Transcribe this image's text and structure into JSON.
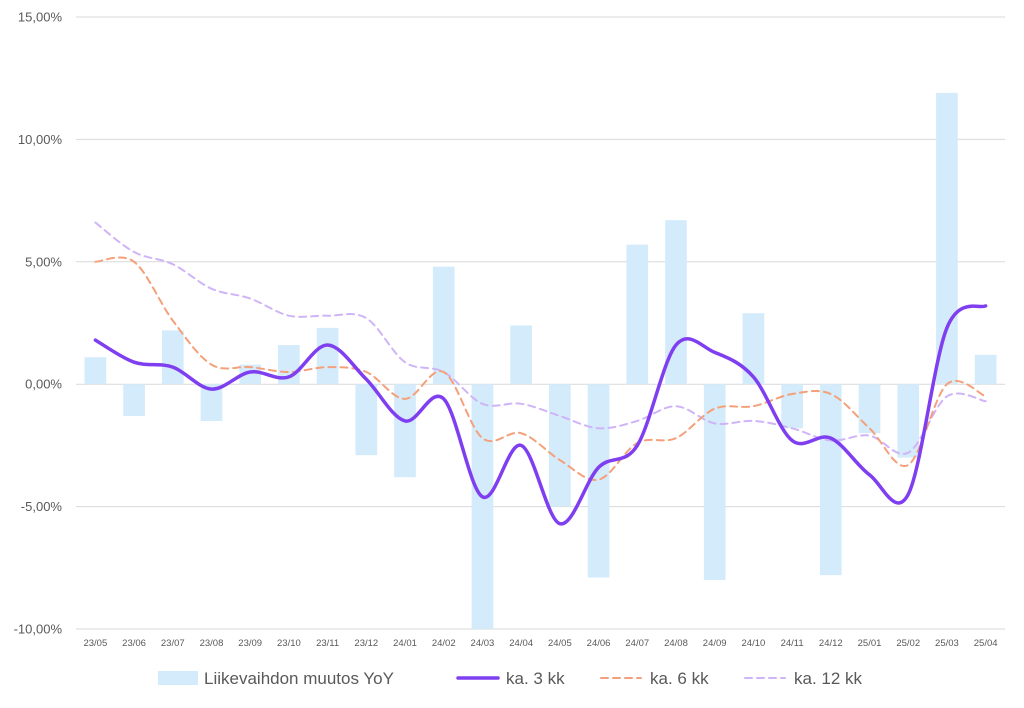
{
  "chart_data": {
    "type": "bar",
    "categories": [
      "23/05",
      "23/06",
      "23/07",
      "23/08",
      "23/09",
      "23/10",
      "23/11",
      "23/12",
      "24/01",
      "24/02",
      "24/03",
      "24/04",
      "24/05",
      "24/06",
      "24/07",
      "24/08",
      "24/09",
      "24/10",
      "24/11",
      "24/12",
      "25/01",
      "25/02",
      "25/03",
      "25/04"
    ],
    "ylim": [
      -10,
      15
    ],
    "yticks": [
      {
        "value": 15,
        "label": "15,00%"
      },
      {
        "value": 10,
        "label": "10,00%"
      },
      {
        "value": 5,
        "label": "5,00%"
      },
      {
        "value": 0,
        "label": "0,00%"
      },
      {
        "value": -5,
        "label": "-5,00%"
      },
      {
        "value": -10,
        "label": "-10,00%"
      }
    ],
    "grid": true,
    "legend_position": "bottom",
    "series": [
      {
        "name": "Liikevaihdon muutos YoY",
        "kind": "bar",
        "color": "#d4ebfb",
        "values": [
          1.1,
          -1.3,
          2.2,
          -1.5,
          0.8,
          1.6,
          2.3,
          -2.9,
          -3.8,
          4.8,
          -10.0,
          2.4,
          -5.0,
          -7.9,
          5.7,
          6.7,
          -8.0,
          2.9,
          -1.8,
          -7.8,
          -2.0,
          -3.0,
          11.9,
          1.2
        ]
      },
      {
        "name": "ka. 3 kk",
        "kind": "line",
        "style": "solid",
        "color": "#7f3ff0",
        "values": [
          1.8,
          0.9,
          0.7,
          -0.2,
          0.5,
          0.3,
          1.6,
          0.2,
          -1.5,
          -0.6,
          -4.6,
          -2.5,
          -5.7,
          -3.4,
          -2.5,
          1.6,
          1.3,
          0.3,
          -2.3,
          -2.2,
          -3.7,
          -4.5,
          2.3,
          3.2
        ]
      },
      {
        "name": "ka. 6 kk",
        "kind": "line",
        "style": "dashed",
        "color": "#f4a07a",
        "values": [
          5.0,
          5.0,
          2.6,
          0.8,
          0.7,
          0.5,
          0.7,
          0.5,
          -0.6,
          0.5,
          -2.2,
          -2.0,
          -3.1,
          -3.9,
          -2.4,
          -2.2,
          -1.0,
          -0.9,
          -0.4,
          -0.4,
          -1.8,
          -3.3,
          0.0,
          -0.5
        ]
      },
      {
        "name": "ka. 12 kk",
        "kind": "line",
        "style": "dashed",
        "color": "#cfb4f7",
        "values": [
          6.6,
          5.4,
          4.9,
          3.9,
          3.5,
          2.8,
          2.8,
          2.7,
          0.9,
          0.5,
          -0.8,
          -0.8,
          -1.3,
          -1.8,
          -1.5,
          -0.9,
          -1.6,
          -1.5,
          -1.8,
          -2.3,
          -2.1,
          -2.8,
          -0.5,
          -0.7
        ]
      }
    ]
  }
}
